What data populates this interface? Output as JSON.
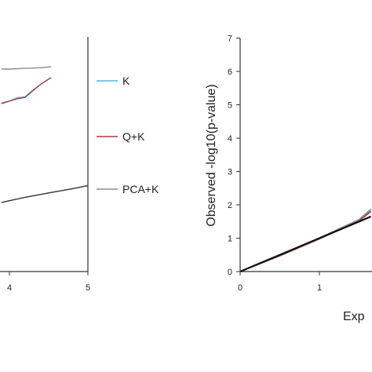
{
  "chart_data": [
    {
      "type": "line",
      "panel": "left (cropped)",
      "title": "",
      "xlabel": "",
      "ylabel": "",
      "x_ticks_visible": [
        "4",
        "5"
      ],
      "xlim": [
        3.9,
        5
      ],
      "series": [
        {
          "name": "PCA+K",
          "color": "#8c8c8c",
          "x": [
            3.9,
            4.0,
            4.2,
            4.4,
            4.53
          ],
          "y": [
            6.0,
            6.0,
            6.02,
            6.04,
            6.07
          ]
        },
        {
          "name": "K",
          "color": "#4bb8e6",
          "x": [
            3.9,
            4.0,
            4.1,
            4.2,
            4.3,
            4.4,
            4.53
          ],
          "y": [
            5.0,
            5.05,
            5.15,
            5.18,
            5.38,
            5.55,
            5.75
          ]
        },
        {
          "name": "Q+K",
          "color": "#b03a3a",
          "x": [
            3.9,
            4.0,
            4.1,
            4.2,
            4.3,
            4.4,
            4.53
          ],
          "y": [
            4.98,
            5.05,
            5.12,
            5.16,
            5.36,
            5.55,
            5.75
          ]
        },
        {
          "name": "",
          "color": "#333333",
          "x": [
            3.9,
            4.2,
            4.5,
            4.8,
            5.0
          ],
          "y": [
            2.05,
            2.2,
            2.33,
            2.45,
            2.55
          ]
        }
      ]
    },
    {
      "type": "line",
      "panel": "right (cropped)",
      "title": "",
      "xlabel": "Exp",
      "ylabel": "Observed -log10(p-value)",
      "xlim": [
        0,
        2
      ],
      "ylim": [
        0,
        7
      ],
      "x_ticks": [
        "0",
        "1"
      ],
      "y_ticks": [
        "0",
        "1",
        "2",
        "3",
        "4",
        "5",
        "6",
        "7"
      ],
      "series": [
        {
          "name": "K",
          "color": "#4bb8e6",
          "x": [
            0,
            0.5,
            1.0,
            1.5,
            1.65
          ],
          "y": [
            0,
            0.48,
            1.0,
            1.55,
            1.85
          ]
        },
        {
          "name": "Q+K",
          "color": "#b03a3a",
          "x": [
            0,
            0.5,
            1.0,
            1.5,
            1.65
          ],
          "y": [
            0,
            0.47,
            0.98,
            1.52,
            1.8
          ]
        },
        {
          "name": "PCA+K",
          "color": "#8c8c8c",
          "x": [
            0,
            0.5,
            1.0,
            1.5,
            1.65
          ],
          "y": [
            0,
            0.49,
            1.01,
            1.56,
            1.87
          ]
        },
        {
          "name": "",
          "color": "#111111",
          "x": [
            0,
            0.5,
            1.0,
            1.5,
            1.65
          ],
          "y": [
            0,
            0.5,
            1.0,
            1.5,
            1.65
          ]
        }
      ]
    }
  ],
  "legend": {
    "placement": "center",
    "entries": [
      {
        "label": "K",
        "color": "#4bb8e6"
      },
      {
        "label": "Q+K",
        "color": "#b03a3a"
      },
      {
        "label": "PCA+K",
        "color": "#8c8c8c"
      }
    ]
  }
}
